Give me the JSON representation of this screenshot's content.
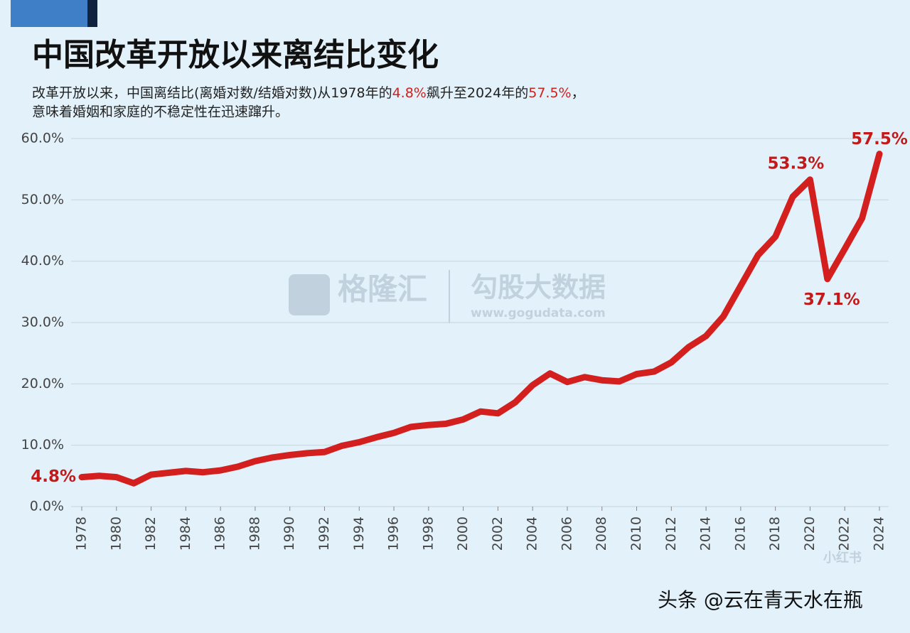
{
  "chart_data": {
    "type": "line",
    "title": "中国改革开放以来离结比变化",
    "subtitle": [
      "改革开放以来，中国离结比(离婚对数/结婚对数)从1978年的",
      "4.8%",
      "飙升至2024年的",
      "57.5%",
      "，",
      "意味着婚姻和家庭的不稳定性在迅速蹿升。"
    ],
    "x": [
      1978,
      1979,
      1980,
      1981,
      1982,
      1983,
      1984,
      1985,
      1986,
      1987,
      1988,
      1989,
      1990,
      1991,
      1992,
      1993,
      1994,
      1995,
      1996,
      1997,
      1998,
      1999,
      2000,
      2001,
      2002,
      2003,
      2004,
      2005,
      2006,
      2007,
      2008,
      2009,
      2010,
      2011,
      2012,
      2013,
      2014,
      2015,
      2016,
      2017,
      2018,
      2019,
      2020,
      2021,
      2022,
      2023,
      2024
    ],
    "series": [
      {
        "color": "#d41f1f",
        "values": [
          4.8,
          5.0,
          4.8,
          3.8,
          5.2,
          5.5,
          5.8,
          5.6,
          5.9,
          6.5,
          7.4,
          8.0,
          8.4,
          8.7,
          8.9,
          9.9,
          10.5,
          11.3,
          12.0,
          13.0,
          13.3,
          13.5,
          14.2,
          15.5,
          15.2,
          17.0,
          19.8,
          21.7,
          20.3,
          21.1,
          20.6,
          20.4,
          21.6,
          22.0,
          23.5,
          26.0,
          27.8,
          31.0,
          36.0,
          41.0,
          44.0,
          50.5,
          53.3,
          37.1,
          42.0,
          47.0,
          57.5
        ],
        "value_labels": [
          "4.8%",
          null,
          null,
          null,
          null,
          null,
          null,
          null,
          null,
          null,
          null,
          null,
          null,
          null,
          null,
          null,
          null,
          null,
          null,
          null,
          null,
          null,
          null,
          null,
          null,
          null,
          null,
          null,
          null,
          null,
          null,
          null,
          null,
          null,
          null,
          null,
          null,
          null,
          null,
          null,
          null,
          null,
          "53.3%",
          "37.1%",
          null,
          null,
          "57.5%"
        ]
      }
    ],
    "xlim": [
      1978,
      2024
    ],
    "xticks": [
      1978,
      1980,
      1982,
      1984,
      1986,
      1988,
      1990,
      1992,
      1994,
      1996,
      1998,
      2000,
      2002,
      2004,
      2006,
      2008,
      2010,
      2012,
      2014,
      2016,
      2018,
      2020,
      2022,
      2024
    ],
    "ylim": [
      0,
      60
    ],
    "yticks": [
      {
        "value": 0,
        "label": "0.0%"
      },
      {
        "value": 10,
        "label": "10.0%"
      },
      {
        "value": 20,
        "label": "20.0%"
      },
      {
        "value": 30,
        "label": "30.0%"
      },
      {
        "value": 40,
        "label": "40.0%"
      },
      {
        "value": 50,
        "label": "50.0%"
      },
      {
        "value": 60,
        "label": "60.0%"
      }
    ],
    "grid": true
  },
  "watermarks": {
    "brand": "格隆汇",
    "brand2": "勾股大数据",
    "url": "www.gogudata.com",
    "author": "头条 @云在青天水在瓶",
    "badge": "小红书"
  }
}
